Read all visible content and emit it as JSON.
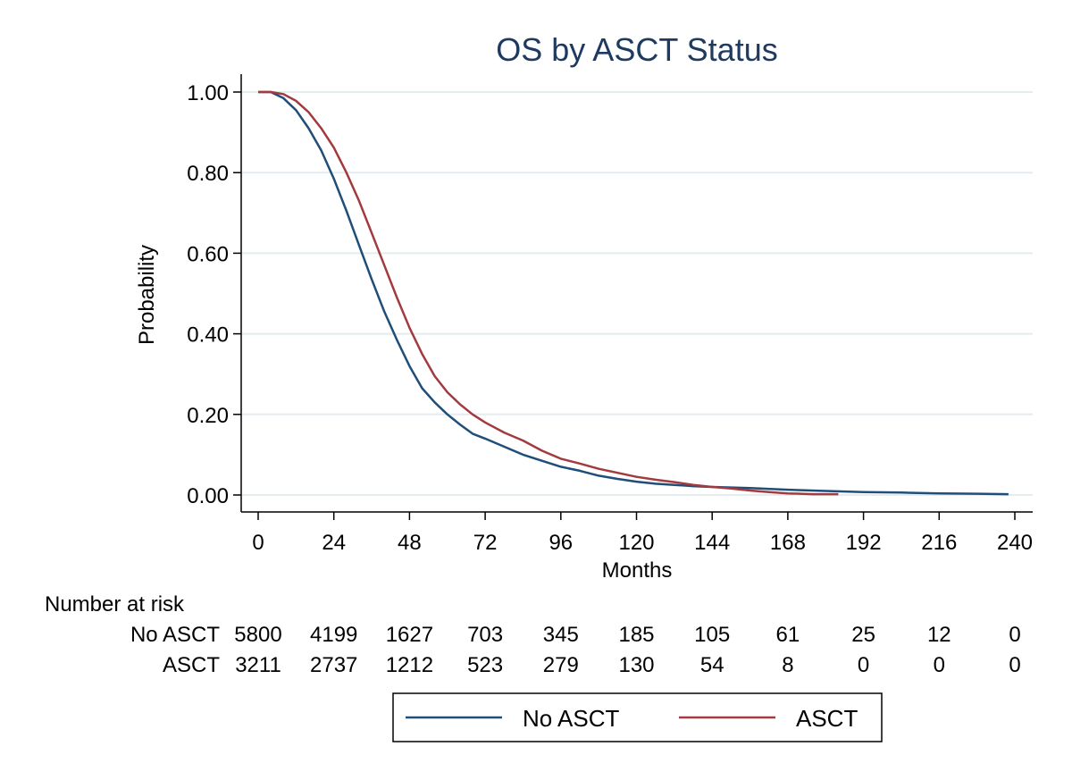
{
  "chart_data": {
    "type": "line",
    "title": "OS by ASCT Status",
    "xlabel": "Months",
    "ylabel": "Probability",
    "xlim": [
      0,
      240
    ],
    "ylim": [
      0,
      1
    ],
    "x_ticks": [
      0,
      24,
      48,
      72,
      96,
      120,
      144,
      168,
      192,
      216,
      240
    ],
    "y_ticks": [
      "0.00",
      "0.20",
      "0.40",
      "0.60",
      "0.80",
      "1.00"
    ],
    "y_tick_values": [
      0,
      0.2,
      0.4,
      0.6,
      0.8,
      1.0
    ],
    "grid": true,
    "legend_position": "bottom",
    "series": [
      {
        "name": "No ASCT",
        "color": "#1f4e79",
        "points": [
          [
            0,
            1.0
          ],
          [
            4,
            1.0
          ],
          [
            8,
            0.985
          ],
          [
            12,
            0.955
          ],
          [
            16,
            0.91
          ],
          [
            20,
            0.855
          ],
          [
            24,
            0.785
          ],
          [
            28,
            0.705
          ],
          [
            32,
            0.62
          ],
          [
            36,
            0.535
          ],
          [
            40,
            0.455
          ],
          [
            44,
            0.385
          ],
          [
            48,
            0.32
          ],
          [
            52,
            0.265
          ],
          [
            56,
            0.23
          ],
          [
            60,
            0.2
          ],
          [
            64,
            0.175
          ],
          [
            68,
            0.152
          ],
          [
            72,
            0.14
          ],
          [
            78,
            0.12
          ],
          [
            84,
            0.1
          ],
          [
            90,
            0.085
          ],
          [
            96,
            0.07
          ],
          [
            102,
            0.06
          ],
          [
            108,
            0.048
          ],
          [
            114,
            0.04
          ],
          [
            120,
            0.033
          ],
          [
            126,
            0.028
          ],
          [
            132,
            0.025
          ],
          [
            138,
            0.022
          ],
          [
            144,
            0.02
          ],
          [
            156,
            0.017
          ],
          [
            168,
            0.013
          ],
          [
            180,
            0.01
          ],
          [
            192,
            0.007
          ],
          [
            204,
            0.006
          ],
          [
            216,
            0.004
          ],
          [
            228,
            0.003
          ],
          [
            238,
            0.002
          ]
        ]
      },
      {
        "name": "ASCT",
        "color": "#a23a3f",
        "points": [
          [
            0,
            1.0
          ],
          [
            4,
            1.0
          ],
          [
            8,
            0.995
          ],
          [
            12,
            0.978
          ],
          [
            16,
            0.95
          ],
          [
            20,
            0.91
          ],
          [
            24,
            0.862
          ],
          [
            28,
            0.8
          ],
          [
            32,
            0.73
          ],
          [
            36,
            0.65
          ],
          [
            40,
            0.57
          ],
          [
            44,
            0.49
          ],
          [
            48,
            0.415
          ],
          [
            52,
            0.35
          ],
          [
            56,
            0.295
          ],
          [
            60,
            0.255
          ],
          [
            64,
            0.225
          ],
          [
            68,
            0.2
          ],
          [
            72,
            0.18
          ],
          [
            78,
            0.155
          ],
          [
            84,
            0.135
          ],
          [
            90,
            0.11
          ],
          [
            96,
            0.09
          ],
          [
            102,
            0.078
          ],
          [
            108,
            0.065
          ],
          [
            114,
            0.055
          ],
          [
            120,
            0.045
          ],
          [
            126,
            0.038
          ],
          [
            132,
            0.032
          ],
          [
            138,
            0.025
          ],
          [
            144,
            0.02
          ],
          [
            150,
            0.016
          ],
          [
            156,
            0.011
          ],
          [
            162,
            0.007
          ],
          [
            168,
            0.004
          ],
          [
            176,
            0.002
          ],
          [
            184,
            0.002
          ]
        ]
      }
    ]
  },
  "risk_table": {
    "header": "Number at risk",
    "rows": [
      {
        "label": "No ASCT",
        "values": [
          "5800",
          "4199",
          "1627",
          "703",
          "345",
          "185",
          "105",
          "61",
          "25",
          "12",
          "0"
        ]
      },
      {
        "label": "ASCT",
        "values": [
          "3211",
          "2737",
          "1212",
          "523",
          "279",
          "130",
          "54",
          "8",
          "0",
          "0",
          "0"
        ]
      }
    ]
  },
  "legend": {
    "items": [
      {
        "label": "No ASCT",
        "color": "#1f4e79"
      },
      {
        "label": "ASCT",
        "color": "#a23a3f"
      }
    ]
  },
  "colors": {
    "title": "#1f3a60",
    "grid": "#e4ecef",
    "axis": "#000000"
  }
}
